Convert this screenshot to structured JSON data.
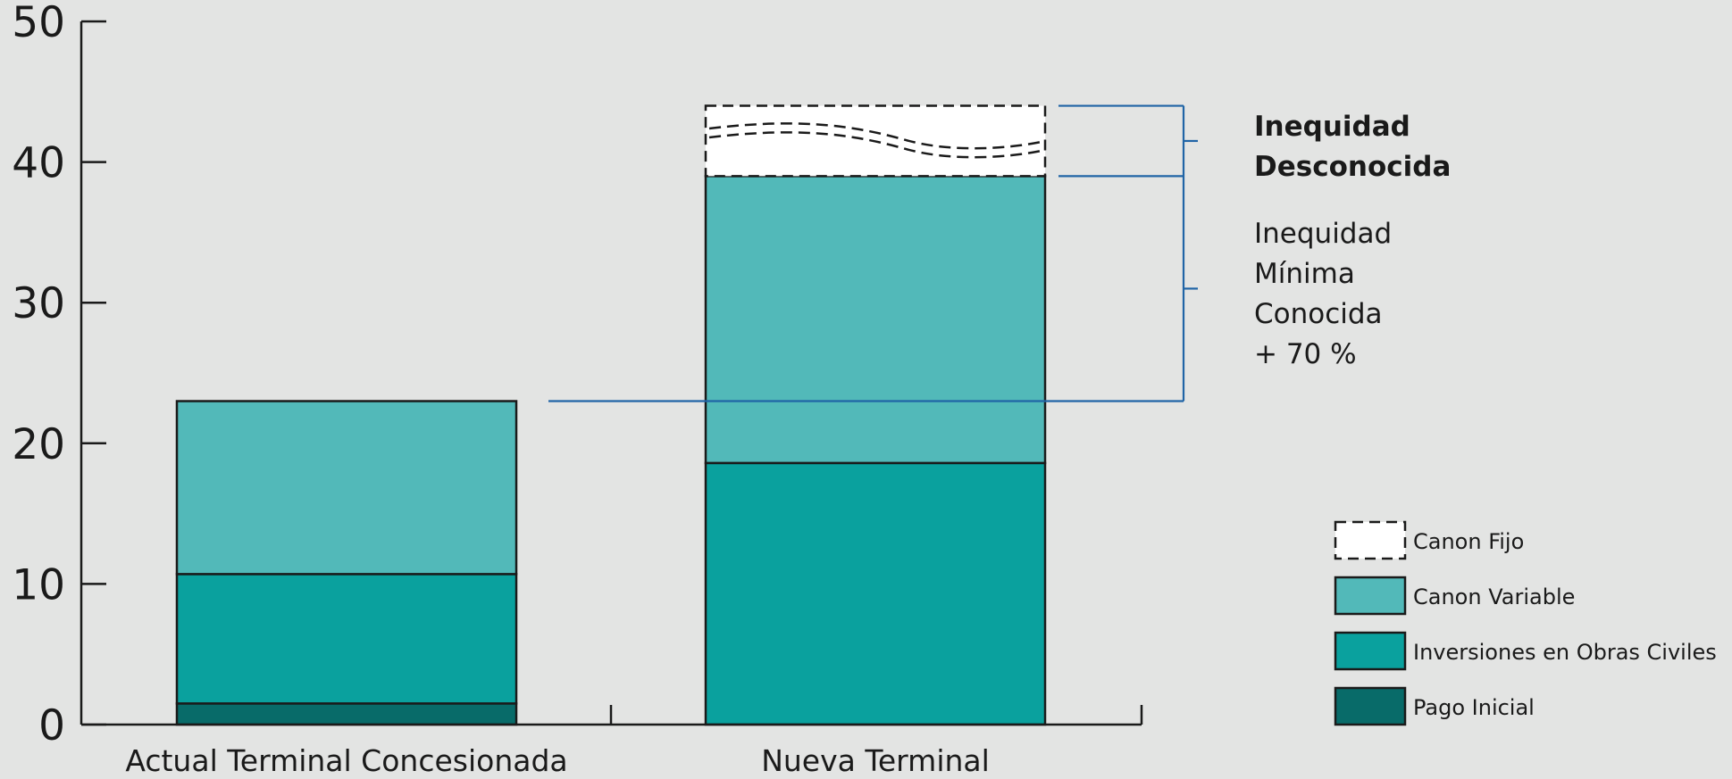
{
  "chart_data": {
    "type": "bar",
    "stacked": true,
    "categories": [
      "Actual Terminal Concesionada",
      "Nueva Terminal"
    ],
    "series": [
      {
        "name": "Pago Inicial",
        "values": [
          1.5,
          0
        ],
        "color": "#086b69"
      },
      {
        "name": "Inversiones en Obras Civiles",
        "values": [
          9.2,
          18.6
        ],
        "color": "#0aa19e"
      },
      {
        "name": "Canon Variable",
        "values": [
          12.3,
          20.4
        ],
        "color": "#52b9b9"
      },
      {
        "name": "Canon Fijo",
        "values": [
          0,
          5
        ],
        "color": "#ffffff",
        "style": "dashed-outline"
      }
    ],
    "ylim": [
      0,
      50
    ],
    "yticks": [
      0,
      10,
      20,
      30,
      40,
      50
    ],
    "legend_position": "bottom-right",
    "legend_order": [
      "Canon Fijo",
      "Canon Variable",
      "Inversiones en Obras Civiles",
      "Pago Inicial"
    ],
    "annotations": {
      "reference_level": 23,
      "unknown_range": [
        39,
        44
      ],
      "unknown_label": [
        "Inequidad",
        "Desconocida"
      ],
      "known_label": [
        "Inequidad",
        "Mínima",
        "Conocida",
        "+ 70 %"
      ],
      "bracket_color": "#2064a6"
    }
  }
}
